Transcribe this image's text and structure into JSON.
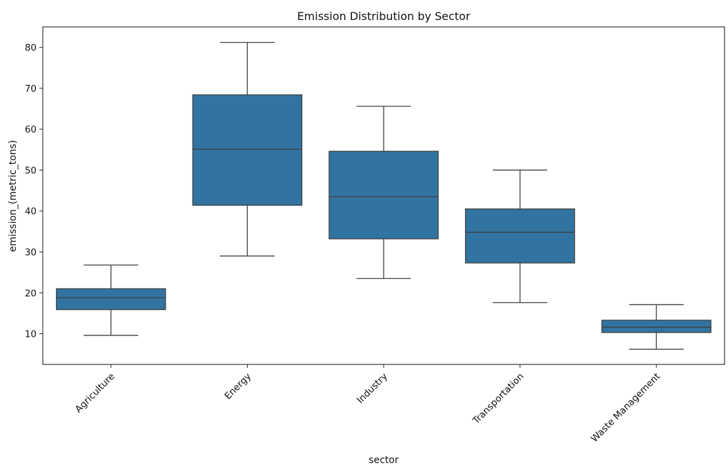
{
  "chart_data": {
    "type": "boxplot",
    "title": "Emission Distribution by Sector",
    "xlabel": "sector",
    "ylabel": "emission_(metric_tons)",
    "ylim": [
      2.5,
      85
    ],
    "yticks": [
      10,
      20,
      30,
      40,
      50,
      60,
      70,
      80
    ],
    "grid": false,
    "box_color": "#3274a1",
    "categories": [
      "Agriculture",
      "Energy",
      "Industry",
      "Transportation",
      "Waste Management"
    ],
    "boxes": [
      {
        "min": 9.6,
        "q1": 15.9,
        "median": 18.8,
        "q3": 21.0,
        "max": 26.8
      },
      {
        "min": 29.0,
        "q1": 41.4,
        "median": 55.1,
        "q3": 68.4,
        "max": 81.2
      },
      {
        "min": 23.5,
        "q1": 33.2,
        "median": 43.5,
        "q3": 54.6,
        "max": 65.6
      },
      {
        "min": 17.6,
        "q1": 27.3,
        "median": 34.8,
        "q3": 40.5,
        "max": 50.0
      },
      {
        "min": 6.2,
        "q1": 10.3,
        "median": 11.6,
        "q3": 13.3,
        "max": 17.1
      }
    ]
  }
}
